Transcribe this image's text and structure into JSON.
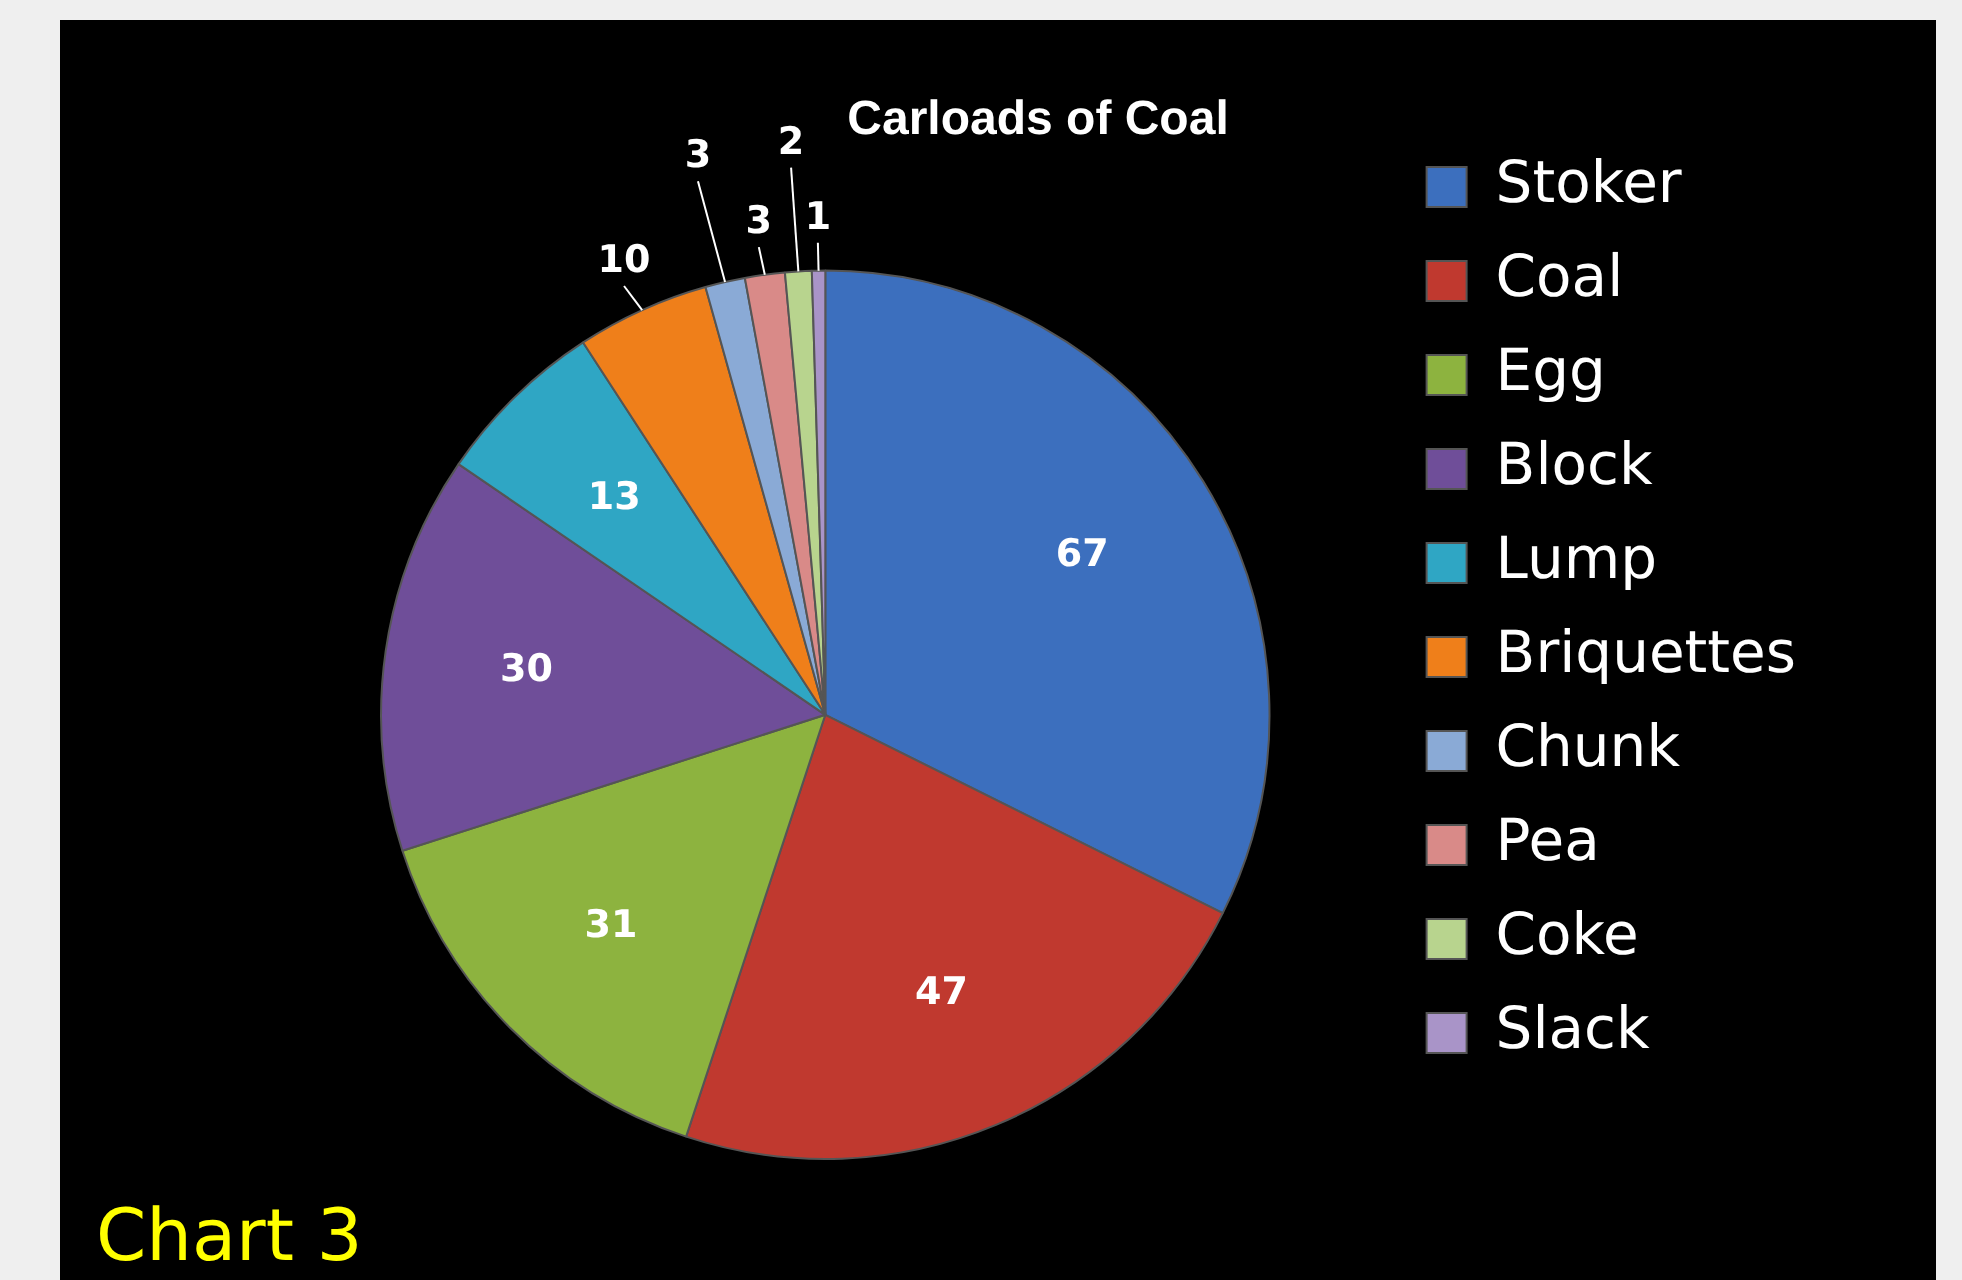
{
  "chart_data": {
    "type": "pie",
    "title": "Carloads of Coal",
    "categories": [
      "Stoker",
      "Coal",
      "Egg",
      "Block",
      "Lump",
      "Briquettes",
      "Chunk",
      "Pea",
      "Coke",
      "Slack"
    ],
    "values": [
      67,
      47,
      31,
      30,
      13,
      10,
      3,
      3,
      2,
      1
    ],
    "colors": [
      "#3c6fbe",
      "#c0392f",
      "#8db33f",
      "#6f4e99",
      "#2fa6c4",
      "#ef7f1a",
      "#8aaad6",
      "#d98a88",
      "#b8d48e",
      "#a994c8"
    ],
    "legend": "right",
    "data_labels": true,
    "annotations": [
      "Chart 3"
    ]
  }
}
